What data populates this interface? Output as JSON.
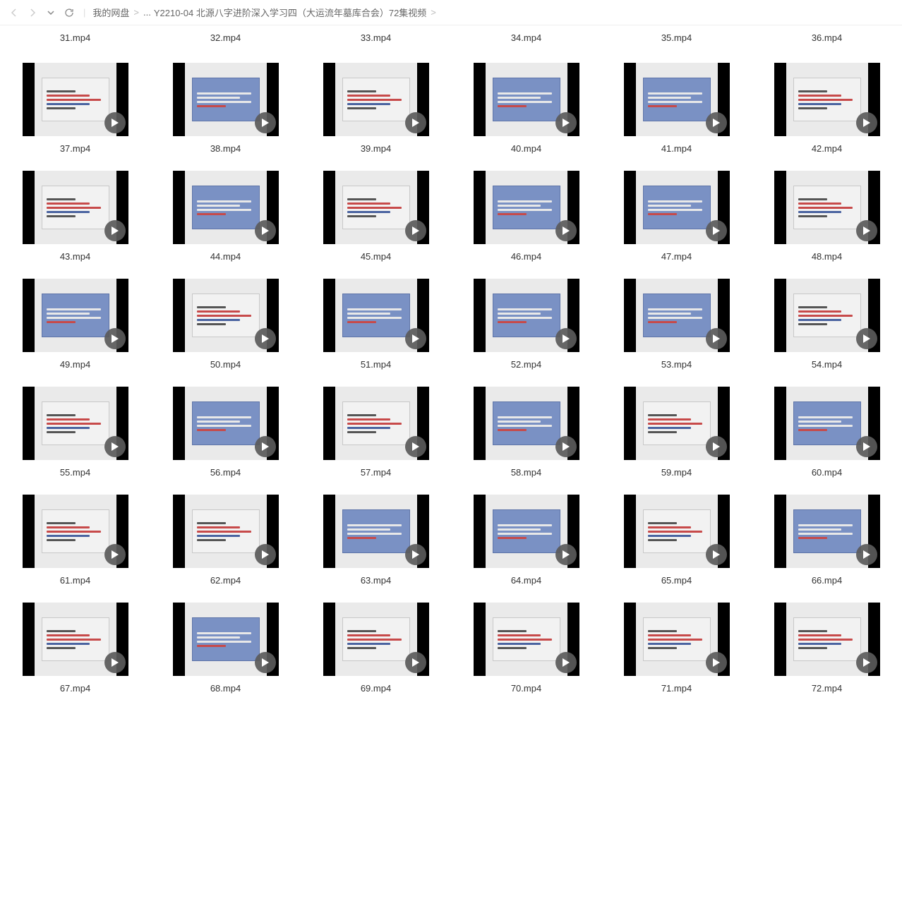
{
  "breadcrumb": {
    "root": "我的网盘",
    "ellipsis": "...",
    "folder": "Y2210-04 北源八字进阶深入学习四（大运流年墓库合会）72集视频"
  },
  "topRow": [
    {
      "name": "31.mp4"
    },
    {
      "name": "32.mp4"
    },
    {
      "name": "33.mp4"
    },
    {
      "name": "34.mp4"
    },
    {
      "name": "35.mp4"
    },
    {
      "name": "36.mp4"
    }
  ],
  "files": [
    {
      "name": "37.mp4",
      "style": "gray"
    },
    {
      "name": "38.mp4",
      "style": "blue"
    },
    {
      "name": "39.mp4",
      "style": "gray"
    },
    {
      "name": "40.mp4",
      "style": "blue"
    },
    {
      "name": "41.mp4",
      "style": "blue"
    },
    {
      "name": "42.mp4",
      "style": "gray"
    },
    {
      "name": "43.mp4",
      "style": "gray"
    },
    {
      "name": "44.mp4",
      "style": "blue"
    },
    {
      "name": "45.mp4",
      "style": "gray"
    },
    {
      "name": "46.mp4",
      "style": "blue"
    },
    {
      "name": "47.mp4",
      "style": "blue"
    },
    {
      "name": "48.mp4",
      "style": "gray"
    },
    {
      "name": "49.mp4",
      "style": "blue"
    },
    {
      "name": "50.mp4",
      "style": "gray"
    },
    {
      "name": "51.mp4",
      "style": "blue"
    },
    {
      "name": "52.mp4",
      "style": "blue"
    },
    {
      "name": "53.mp4",
      "style": "blue"
    },
    {
      "name": "54.mp4",
      "style": "gray"
    },
    {
      "name": "55.mp4",
      "style": "gray"
    },
    {
      "name": "56.mp4",
      "style": "blue"
    },
    {
      "name": "57.mp4",
      "style": "gray"
    },
    {
      "name": "58.mp4",
      "style": "blue"
    },
    {
      "name": "59.mp4",
      "style": "gray"
    },
    {
      "name": "60.mp4",
      "style": "blue"
    },
    {
      "name": "61.mp4",
      "style": "gray"
    },
    {
      "name": "62.mp4",
      "style": "gray"
    },
    {
      "name": "63.mp4",
      "style": "blue"
    },
    {
      "name": "64.mp4",
      "style": "blue"
    },
    {
      "name": "65.mp4",
      "style": "gray"
    },
    {
      "name": "66.mp4",
      "style": "blue"
    },
    {
      "name": "67.mp4",
      "style": "gray"
    },
    {
      "name": "68.mp4",
      "style": "blue"
    },
    {
      "name": "69.mp4",
      "style": "gray"
    },
    {
      "name": "70.mp4",
      "style": "gray"
    },
    {
      "name": "71.mp4",
      "style": "gray"
    },
    {
      "name": "72.mp4",
      "style": "gray"
    }
  ],
  "colors": {
    "play_badge_bg": "#5a5a5a",
    "thumb_black": "#000000",
    "slide_gray": "#f2f2f2",
    "slide_blue": "#7a91c4"
  }
}
